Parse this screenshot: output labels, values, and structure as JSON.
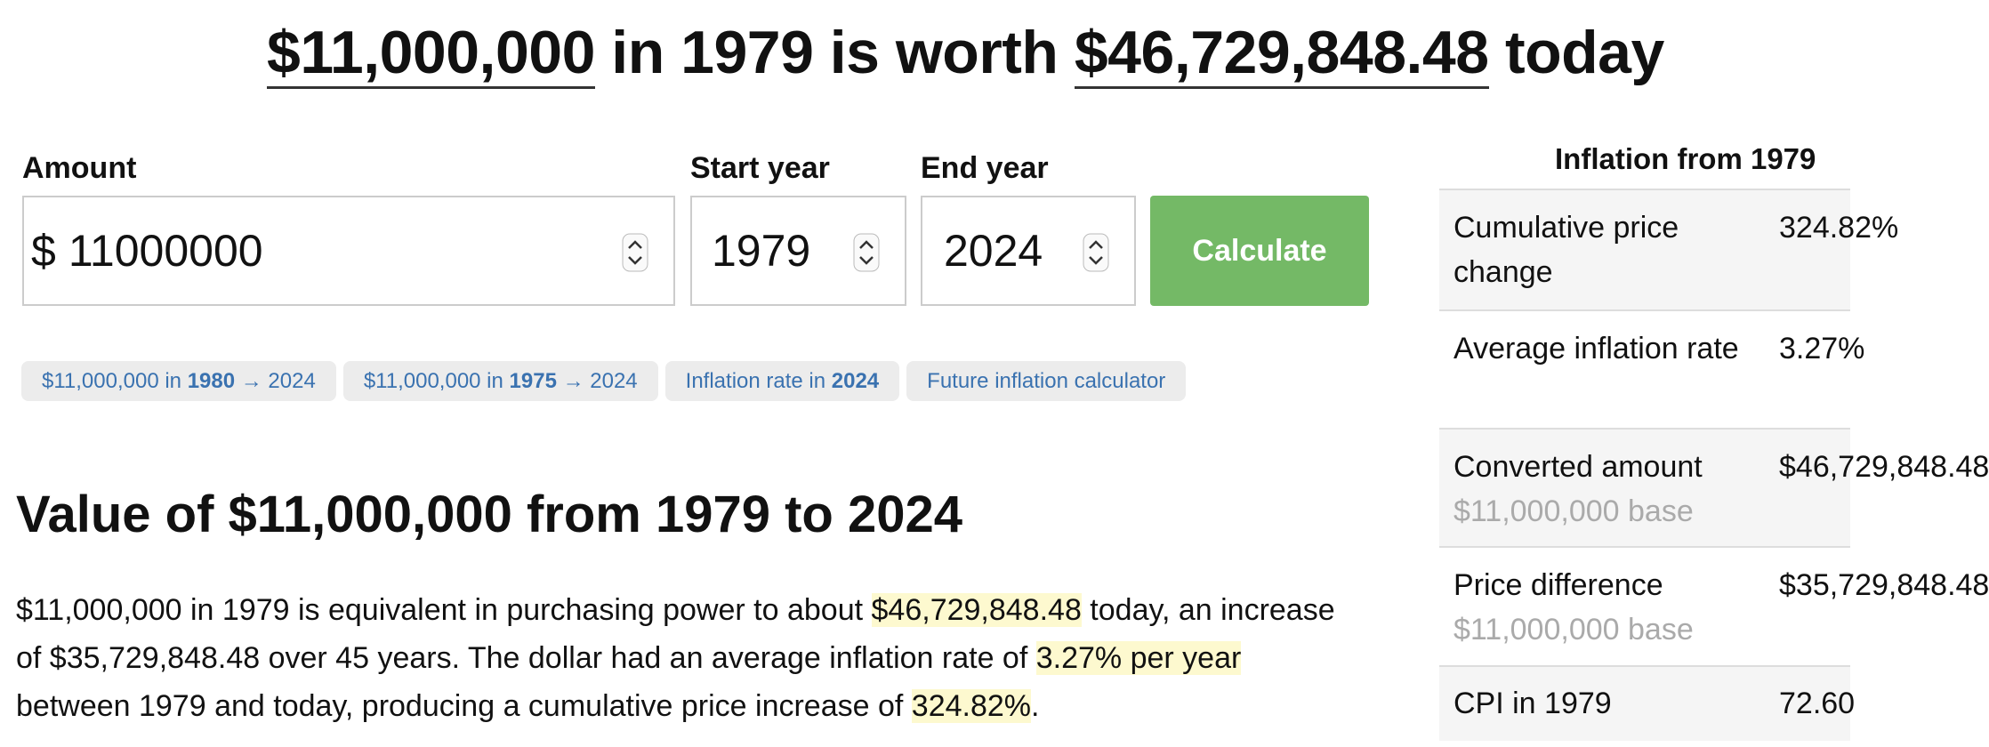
{
  "header": {
    "title_parts": [
      {
        "text": "$11,000,000",
        "underline": true
      },
      {
        "text": " in 1979 is worth ",
        "underline": false
      },
      {
        "text": "$46,729,848.48",
        "underline": true
      },
      {
        "text": " today",
        "underline": false
      }
    ]
  },
  "form": {
    "amount": {
      "label": "Amount",
      "prefix": "$",
      "value": "11000000"
    },
    "start_year": {
      "label": "Start year",
      "value": "1979"
    },
    "end_year": {
      "label": "End year",
      "value": "2024"
    },
    "button": "Calculate"
  },
  "chips": [
    [
      {
        "text": "$11,000,000 in ",
        "bold": false
      },
      {
        "text": "1980",
        "bold": true
      },
      {
        "text": " → 2024",
        "bold": false
      }
    ],
    [
      {
        "text": "$11,000,000 in ",
        "bold": false
      },
      {
        "text": "1975",
        "bold": true
      },
      {
        "text": " → 2024",
        "bold": false
      }
    ],
    [
      {
        "text": "Inflation rate in ",
        "bold": false
      },
      {
        "text": "2024",
        "bold": true
      }
    ],
    [
      {
        "text": "Future inflation calculator",
        "bold": false
      }
    ]
  ],
  "section": {
    "heading": "Value of $11,000,000 from 1979 to 2024",
    "paragraph": [
      {
        "text": "$11,000,000 in 1979 is equivalent in purchasing power to about ",
        "highlight": false
      },
      {
        "text": "$46,729,848.48",
        "highlight": true
      },
      {
        "text": " today, an increase of $35,729,848.48 over 45 years. The dollar had an average inflation rate of ",
        "highlight": false
      },
      {
        "text": "3.27% per year",
        "highlight": true
      },
      {
        "text": " between 1979 and today, producing a cumulative price increase of ",
        "highlight": false
      },
      {
        "text": "324.82%",
        "highlight": true
      },
      {
        "text": ".",
        "highlight": false
      }
    ]
  },
  "table": {
    "title": "Inflation from 1979",
    "rows": [
      {
        "label": "Cumulative price change",
        "note": null,
        "value": "324.82%"
      },
      {
        "label": "Average inflation rate",
        "note": null,
        "value": "3.27%"
      },
      {
        "label": "Converted amount",
        "note": "$11,000,000 base",
        "value": "$46,729,848.48"
      },
      {
        "label": "Price difference",
        "note": "$11,000,000 base",
        "value": "$35,729,848.48"
      },
      {
        "label": "CPI in 1979",
        "note": null,
        "value": "72.60"
      }
    ]
  }
}
